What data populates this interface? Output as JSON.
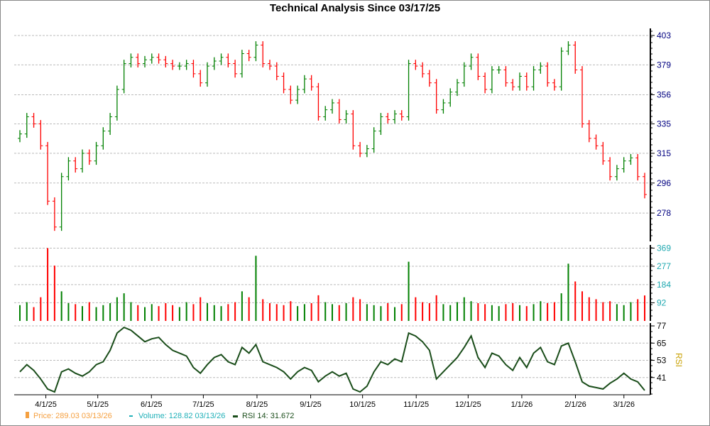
{
  "chart_data": {
    "type": "ohlc+volume+rsi",
    "title": "Technical Analysis Since 03/17/25",
    "start_date": "03/17/25",
    "end_date": "03/13/26",
    "price_axis": {
      "scale": "log",
      "range": [
        262,
        409
      ],
      "ticks": [
        403,
        379,
        356,
        335,
        315,
        296,
        278
      ],
      "color": "#000080"
    },
    "volume_axis": {
      "range": [
        0,
        385
      ],
      "ticks": [
        369,
        277,
        184,
        92
      ],
      "color": "#1fa8b0"
    },
    "rsi_axis": {
      "label": "RSI",
      "range": [
        29,
        79
      ],
      "ticks": [
        77,
        65,
        53,
        41
      ]
    },
    "x_ticks": [
      "4/1/25",
      "5/1/25",
      "6/1/25",
      "7/1/25",
      "8/1/25",
      "9/1/25",
      "10/1/25",
      "11/1/25",
      "12/1/25",
      "1/1/26",
      "2/1/26",
      "3/1/26"
    ],
    "grid": true,
    "colors": {
      "up": "#008000",
      "down": "#ff0000",
      "rsi": "#1a4d1a",
      "price_legend": "#f5a040",
      "volume_legend": "#1fb0b8"
    },
    "close": [
      328,
      340,
      335,
      320,
      285,
      270,
      300,
      310,
      305,
      315,
      310,
      320,
      330,
      340,
      360,
      380,
      385,
      380,
      383,
      385,
      383,
      380,
      378,
      378,
      380,
      372,
      365,
      378,
      382,
      385,
      380,
      372,
      388,
      385,
      395,
      380,
      378,
      370,
      360,
      352,
      360,
      368,
      362,
      340,
      345,
      350,
      338,
      342,
      320,
      315,
      318,
      330,
      340,
      338,
      342,
      340,
      380,
      378,
      372,
      365,
      345,
      350,
      358,
      365,
      378,
      385,
      370,
      360,
      375,
      375,
      365,
      362,
      370,
      362,
      375,
      378,
      365,
      362,
      390,
      395,
      375,
      335,
      325,
      320,
      310,
      300,
      305,
      310,
      312,
      300,
      289
    ],
    "volume": [
      80,
      95,
      70,
      120,
      369,
      280,
      150,
      90,
      85,
      75,
      95,
      70,
      80,
      90,
      120,
      140,
      95,
      80,
      70,
      85,
      75,
      90,
      80,
      70,
      95,
      85,
      120,
      90,
      80,
      75,
      85,
      95,
      150,
      120,
      330,
      110,
      90,
      85,
      80,
      100,
      75,
      85,
      90,
      130,
      95,
      85,
      80,
      90,
      120,
      110,
      85,
      80,
      75,
      90,
      70,
      85,
      300,
      120,
      95,
      90,
      130,
      85,
      80,
      95,
      120,
      100,
      90,
      85,
      80,
      75,
      85,
      90,
      80,
      75,
      85,
      100,
      90,
      95,
      140,
      290,
      200,
      150,
      120,
      110,
      95,
      100,
      85,
      80,
      95,
      110,
      129
    ],
    "rsi": [
      45,
      50,
      46,
      40,
      33,
      31,
      45,
      47,
      44,
      42,
      45,
      50,
      52,
      60,
      72,
      76,
      74,
      70,
      66,
      68,
      69,
      64,
      60,
      58,
      56,
      48,
      44,
      50,
      55,
      57,
      52,
      50,
      62,
      58,
      64,
      52,
      50,
      48,
      45,
      40,
      45,
      48,
      46,
      38,
      42,
      45,
      42,
      44,
      33,
      31,
      35,
      45,
      52,
      50,
      54,
      52,
      72,
      70,
      66,
      60,
      40,
      45,
      50,
      55,
      62,
      70,
      55,
      48,
      58,
      56,
      50,
      46,
      55,
      48,
      58,
      62,
      52,
      50,
      63,
      65,
      52,
      38,
      35,
      34,
      33,
      37,
      40,
      44,
      40,
      38,
      32
    ]
  },
  "legend": {
    "price": "Price: 289.03  03/13/26",
    "volume": "Volume: 128.82  03/13/26",
    "rsi": "RSI 14: 31.672"
  }
}
